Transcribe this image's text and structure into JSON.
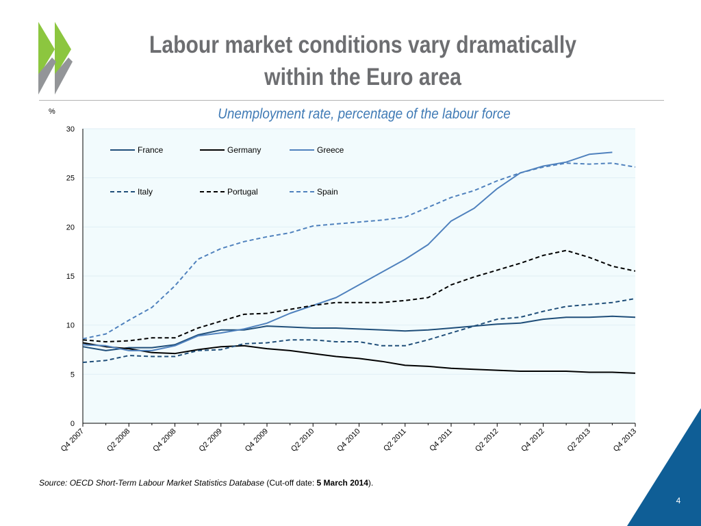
{
  "slide": {
    "title_line1": "Labour market conditions vary dramatically",
    "title_line2": "within the Euro area",
    "subtitle": "Unemployment rate, percentage of the labour force",
    "y_unit": "%",
    "source_italic": "Source: OECD Short-Term Labour Market Statistics Database",
    "source_plain": " (Cut-off date: ",
    "source_bold": "5 March 2014",
    "source_end": ").",
    "page_number": "4",
    "colors": {
      "title": "#6d6e71",
      "subtitle": "#3f7ab5",
      "logo_green": "#8cc63f",
      "logo_gray": "#939598",
      "corner": "#0f5e96",
      "plot_bg": "#f2fbfd"
    }
  },
  "chart_data": {
    "type": "line",
    "title": "Unemployment rate, percentage of the labour force",
    "xlabel": "",
    "ylabel": "%",
    "ylim": [
      0,
      30
    ],
    "yticks": [
      0,
      5,
      10,
      15,
      20,
      25,
      30
    ],
    "grid": true,
    "legend_position": "top-left",
    "x": [
      "Q4 2007",
      "Q1 2008",
      "Q2 2008",
      "Q3 2008",
      "Q4 2008",
      "Q1 2009",
      "Q2 2009",
      "Q3 2009",
      "Q4 2009",
      "Q1 2010",
      "Q2 2010",
      "Q3 2010",
      "Q4 2010",
      "Q1 2011",
      "Q2 2011",
      "Q3 2011",
      "Q4 2011",
      "Q1 2012",
      "Q2 2012",
      "Q3 2012",
      "Q4 2012",
      "Q1 2013",
      "Q2 2013",
      "Q3 2013",
      "Q4 2013"
    ],
    "x_tick_labels": [
      "Q4 2007",
      "Q2 2008",
      "Q4 2008",
      "Q2 2009",
      "Q4 2009",
      "Q2 2010",
      "Q4 2010",
      "Q2 2011",
      "Q4 2011",
      "Q2 2012",
      "Q4 2012",
      "Q2 2013",
      "Q4 2013"
    ],
    "series": [
      {
        "name": "France",
        "color": "#1f4e79",
        "dash": "solid",
        "values": [
          7.8,
          7.4,
          7.7,
          7.7,
          8.0,
          9.0,
          9.5,
          9.5,
          9.9,
          9.8,
          9.7,
          9.7,
          9.6,
          9.5,
          9.4,
          9.5,
          9.7,
          9.9,
          10.1,
          10.2,
          10.6,
          10.8,
          10.8,
          10.9,
          10.8
        ]
      },
      {
        "name": "Germany",
        "color": "#000000",
        "dash": "solid",
        "values": [
          8.2,
          7.8,
          7.6,
          7.2,
          7.1,
          7.5,
          7.8,
          7.9,
          7.6,
          7.4,
          7.1,
          6.8,
          6.6,
          6.3,
          5.9,
          5.8,
          5.6,
          5.5,
          5.4,
          5.3,
          5.3,
          5.3,
          5.2,
          5.2,
          5.1
        ]
      },
      {
        "name": "Greece",
        "color": "#4f81bd",
        "dash": "solid",
        "values": [
          8.0,
          7.9,
          7.4,
          7.4,
          7.9,
          8.9,
          9.2,
          9.6,
          10.2,
          11.2,
          12.0,
          12.8,
          14.1,
          15.4,
          16.7,
          18.2,
          20.6,
          21.9,
          23.9,
          25.5,
          26.2,
          26.6,
          27.4,
          27.6,
          null
        ]
      },
      {
        "name": "Italy",
        "color": "#1f4e79",
        "dash": "dashed",
        "values": [
          6.2,
          6.4,
          6.9,
          6.8,
          6.8,
          7.4,
          7.5,
          8.1,
          8.2,
          8.5,
          8.5,
          8.3,
          8.3,
          7.9,
          7.9,
          8.5,
          9.2,
          9.9,
          10.6,
          10.8,
          11.4,
          11.9,
          12.1,
          12.3,
          12.7
        ]
      },
      {
        "name": "Portugal",
        "color": "#000000",
        "dash": "dashed",
        "values": [
          8.5,
          8.3,
          8.4,
          8.7,
          8.7,
          9.7,
          10.4,
          11.1,
          11.2,
          11.6,
          12.0,
          12.3,
          12.3,
          12.3,
          12.5,
          12.8,
          14.1,
          14.9,
          15.6,
          16.3,
          17.1,
          17.6,
          16.9,
          16.0,
          15.5
        ]
      },
      {
        "name": "Spain",
        "color": "#4f81bd",
        "dash": "dashed",
        "values": [
          8.6,
          9.1,
          10.5,
          11.8,
          14.0,
          16.7,
          17.8,
          18.5,
          19.0,
          19.4,
          20.1,
          20.3,
          20.5,
          20.7,
          21.0,
          22.0,
          23.0,
          23.7,
          24.7,
          25.5,
          26.1,
          26.5,
          26.4,
          26.5,
          26.1
        ]
      }
    ]
  }
}
